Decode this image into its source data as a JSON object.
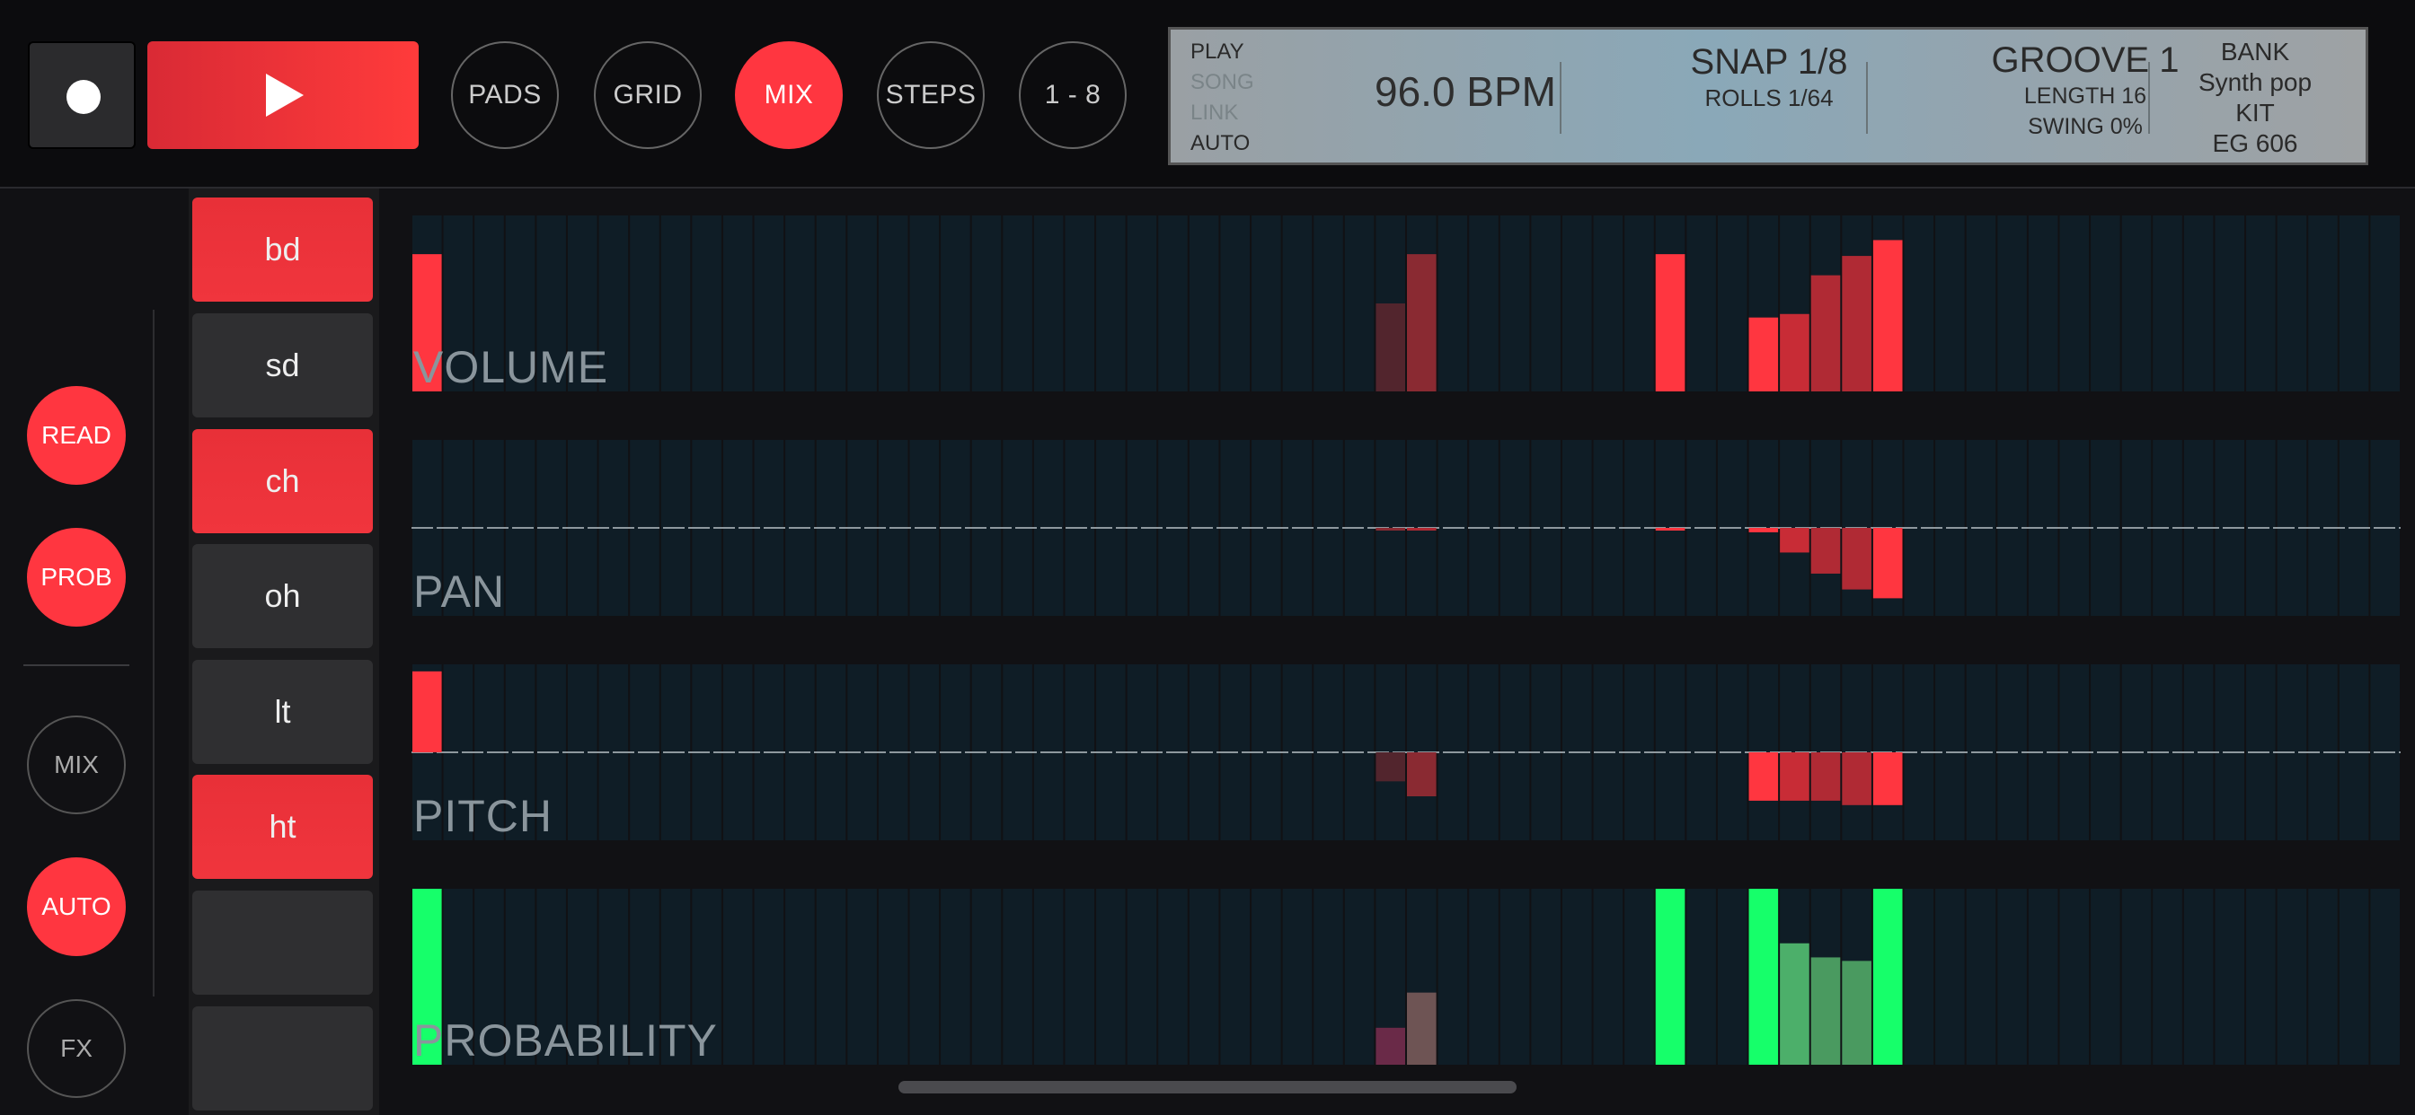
{
  "transport": {
    "play_label": "Play"
  },
  "modes": [
    {
      "label": "PADS",
      "active": false
    },
    {
      "label": "GRID",
      "active": false
    },
    {
      "label": "MIX",
      "active": true
    },
    {
      "label": "STEPS",
      "active": false
    },
    {
      "label": "1 - 8",
      "active": false
    }
  ],
  "lcd": {
    "modes": [
      {
        "label": "PLAY",
        "active": true
      },
      {
        "label": "SONG",
        "active": false
      },
      {
        "label": "LINK",
        "active": false
      },
      {
        "label": "AUTO",
        "active": true
      }
    ],
    "bpm": "96.0 BPM",
    "snap": "SNAP 1/8",
    "rolls": "ROLLS 1/64",
    "groove": "GROOVE 1",
    "length": "LENGTH 16",
    "swing": "SWING 0%",
    "bank_label": "BANK",
    "bank_value": "Synth pop",
    "kit_label": "KIT",
    "kit_value": "EG 606"
  },
  "sidebar": [
    {
      "label": "READ",
      "on": true
    },
    {
      "label": "PROB",
      "on": true
    },
    {
      "label": "MIX",
      "on": false
    },
    {
      "label": "AUTO",
      "on": true
    },
    {
      "label": "FX",
      "on": false
    }
  ],
  "tracks": [
    {
      "label": "bd",
      "on": true
    },
    {
      "label": "sd",
      "on": false
    },
    {
      "label": "ch",
      "on": true
    },
    {
      "label": "oh",
      "on": false
    },
    {
      "label": "lt",
      "on": false
    },
    {
      "label": "ht",
      "on": true
    },
    {
      "label": "",
      "on": false
    },
    {
      "label": "",
      "on": false
    }
  ],
  "colors": {
    "accent": "#ff3640",
    "probability": "#16ff6a",
    "cell_bg": "#0f1d26"
  },
  "mix": {
    "step_count": 64,
    "lanes": [
      {
        "label": "VOLUME",
        "mode": "bottom",
        "bars": [
          {
            "step": 0,
            "value": 0.78,
            "color": "#ff3640"
          },
          {
            "step": 31,
            "value": 0.5,
            "color": "#52252d"
          },
          {
            "step": 32,
            "value": 0.78,
            "color": "#8a2a32"
          },
          {
            "step": 40,
            "value": 0.78,
            "color": "#ff3640"
          },
          {
            "step": 43,
            "value": 0.42,
            "color": "#ff3640"
          },
          {
            "step": 44,
            "value": 0.44,
            "color": "#c82c36"
          },
          {
            "step": 45,
            "value": 0.66,
            "color": "#b02a34"
          },
          {
            "step": 46,
            "value": 0.77,
            "color": "#b02a34"
          },
          {
            "step": 47,
            "value": 0.86,
            "color": "#ff3640"
          }
        ]
      },
      {
        "label": "PAN",
        "mode": "center",
        "bars": [
          {
            "step": 31,
            "value": -0.02,
            "color": "#8a2a32"
          },
          {
            "step": 32,
            "value": -0.03,
            "color": "#b02a34"
          },
          {
            "step": 40,
            "value": -0.03,
            "color": "#ff3640"
          },
          {
            "step": 43,
            "value": -0.05,
            "color": "#ff3640"
          },
          {
            "step": 44,
            "value": -0.28,
            "color": "#c82c36"
          },
          {
            "step": 45,
            "value": -0.52,
            "color": "#b02a34"
          },
          {
            "step": 46,
            "value": -0.7,
            "color": "#b02a34"
          },
          {
            "step": 47,
            "value": -0.8,
            "color": "#ff3640"
          }
        ]
      },
      {
        "label": "PITCH",
        "mode": "center",
        "bars": [
          {
            "step": 0,
            "value": 0.92,
            "color": "#ff3640"
          },
          {
            "step": 31,
            "value": -0.33,
            "color": "#52252d"
          },
          {
            "step": 32,
            "value": -0.5,
            "color": "#8a2a32"
          },
          {
            "step": 43,
            "value": -0.55,
            "color": "#ff3640"
          },
          {
            "step": 44,
            "value": -0.55,
            "color": "#c82c36"
          },
          {
            "step": 45,
            "value": -0.55,
            "color": "#b02a34"
          },
          {
            "step": 46,
            "value": -0.6,
            "color": "#b02a34"
          },
          {
            "step": 47,
            "value": -0.6,
            "color": "#ff3640"
          }
        ]
      },
      {
        "label": "PROBABILITY",
        "mode": "bottom",
        "bars": [
          {
            "step": 0,
            "value": 1.0,
            "color": "#16ff6a"
          },
          {
            "step": 31,
            "value": 0.21,
            "color": "#6a2a48"
          },
          {
            "step": 32,
            "value": 0.41,
            "color": "#6e5454"
          },
          {
            "step": 40,
            "value": 1.0,
            "color": "#16ff6a"
          },
          {
            "step": 43,
            "value": 1.0,
            "color": "#16ff6a"
          },
          {
            "step": 44,
            "value": 0.69,
            "color": "#4caf6a"
          },
          {
            "step": 45,
            "value": 0.61,
            "color": "#4a9a60"
          },
          {
            "step": 46,
            "value": 0.59,
            "color": "#4a9a60"
          },
          {
            "step": 47,
            "value": 1.0,
            "color": "#16ff6a"
          }
        ]
      }
    ]
  }
}
